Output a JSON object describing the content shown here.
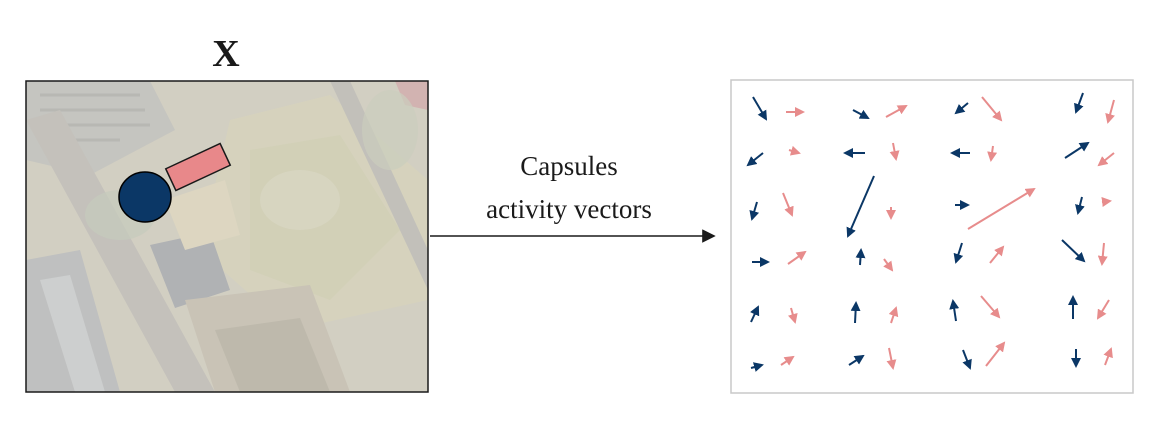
{
  "input_label": "X",
  "arrow_label": {
    "line1": "Capsules",
    "line2": "activity vectors"
  },
  "colors": {
    "navy": "#0b3766",
    "pink": "#e78c8c",
    "frame": "#c8c8c8"
  },
  "icons": [
    "aerial-photo",
    "circle-marker",
    "rectangle-marker",
    "arrow-right-icon"
  ]
}
